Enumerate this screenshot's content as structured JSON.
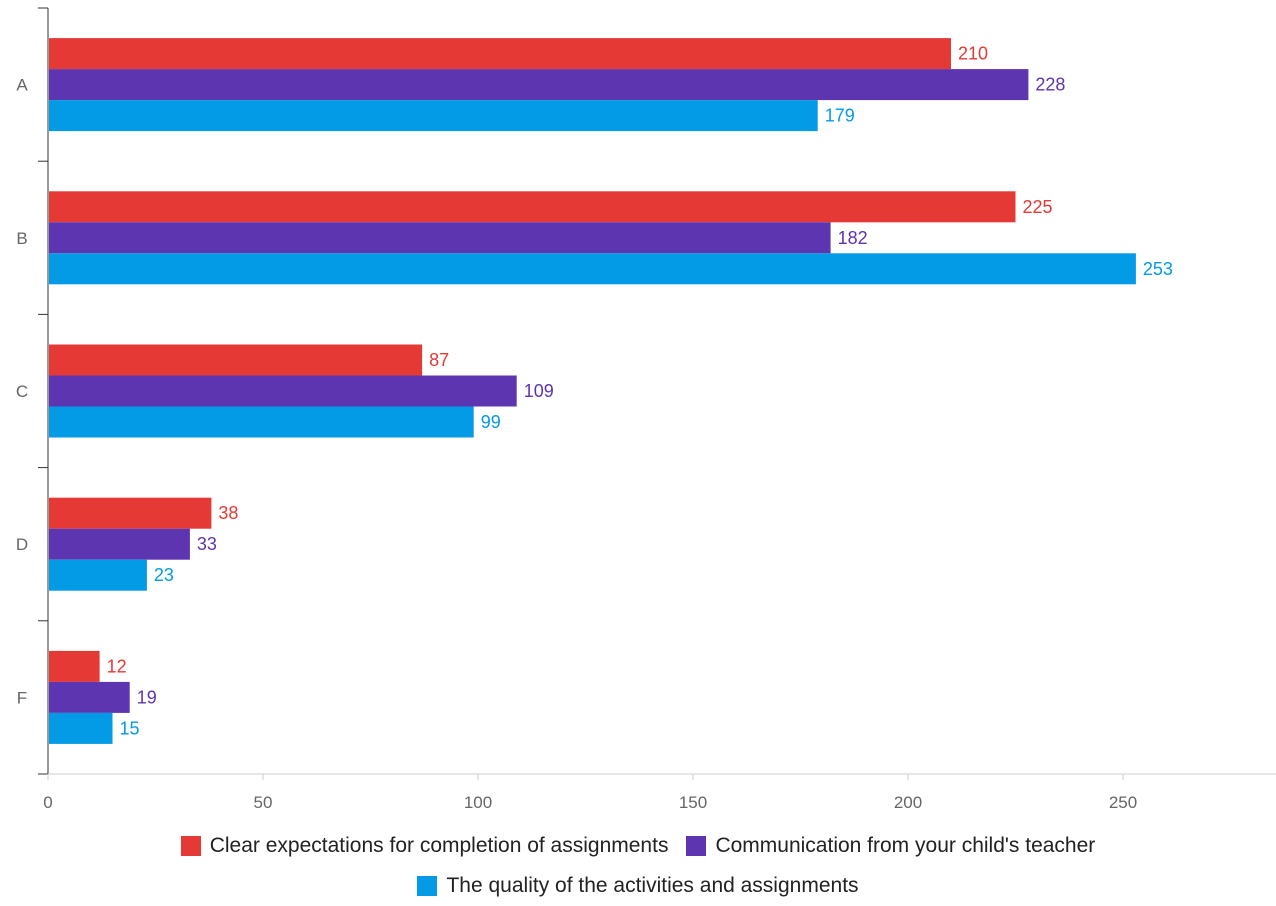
{
  "chart_data": {
    "type": "bar",
    "orientation": "horizontal",
    "categories": [
      "A",
      "B",
      "C",
      "D",
      "F"
    ],
    "series": [
      {
        "name": "Clear expectations for completion of assignments",
        "color": "#e53935",
        "values": [
          210,
          225,
          87,
          38,
          12
        ]
      },
      {
        "name": "Communication from your child's teacher",
        "color": "#5e35b1",
        "values": [
          228,
          182,
          109,
          33,
          19
        ]
      },
      {
        "name": "The quality of the activities and assignments",
        "color": "#039be5",
        "values": [
          179,
          253,
          99,
          23,
          15
        ]
      }
    ],
    "x_ticks": [
      "0",
      "50",
      "100",
      "150",
      "200",
      "250"
    ],
    "xlim": [
      0,
      285
    ],
    "grid": false,
    "legend_position": "bottom"
  }
}
